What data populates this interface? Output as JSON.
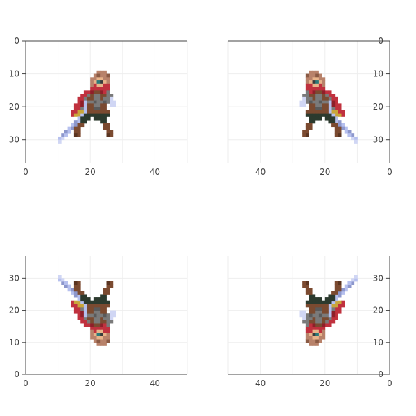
{
  "chart_data": {
    "type": "heatmap",
    "description_panels": [
      "top-left",
      "top-right",
      "bottom-left",
      "bottom-right"
    ],
    "panels": [
      {
        "position": "top-left",
        "xreversed": false,
        "yreversed": true,
        "xlim": [
          0,
          50
        ],
        "ylim": [
          0,
          37
        ],
        "xticks": [
          0,
          20,
          40
        ],
        "yticks": [
          0,
          10,
          20,
          30
        ]
      },
      {
        "position": "top-right",
        "xreversed": true,
        "yreversed": true,
        "xlim": [
          0,
          50
        ],
        "ylim": [
          0,
          37
        ],
        "xticks": [
          40,
          20,
          0
        ],
        "yticks": [
          0,
          10,
          20,
          30
        ]
      },
      {
        "position": "bottom-left",
        "xreversed": false,
        "yreversed": false,
        "xlim": [
          0,
          50
        ],
        "ylim": [
          0,
          37
        ],
        "xticks": [
          0,
          20,
          40
        ],
        "yticks": [
          0,
          10,
          20,
          30
        ]
      },
      {
        "position": "bottom-right",
        "xreversed": true,
        "yreversed": false,
        "xlim": [
          0,
          50
        ],
        "ylim": [
          0,
          37
        ],
        "xticks": [
          40,
          20,
          0
        ],
        "yticks": [
          0,
          10,
          20,
          30
        ]
      }
    ],
    "grid": true,
    "image": {
      "x0": 10,
      "y0": 9,
      "palette": {
        "H": "#b8826a",
        "h": "#8a5a44",
        "S": "#e8b48a",
        "E": "#2b7a7a",
        "e": "#3b3b3b",
        "R": "#c0313e",
        "r": "#8e1f2a",
        "G": "#7a7a7a",
        "g": "#5a5a5a",
        "B": "#7b4a30",
        "b": "#5a3420",
        "K": "#2c3a2e",
        "Y": "#c9a63a",
        "L": "#b6c0ee",
        "l": "#8d97cc",
        "W": "#d0d6f4"
      },
      "rows": [
        "............HHH.....",
        "...........HhHHh....",
        "..........HHSSHH....",
        "..........HSEeSH....",
        "..........HRSSRR....",
        "..........RRRRRR....",
        "........RRrBBrRG....",
        ".......RRGBGGBBGG...",
        "......RRGBBGGBGGW...",
        "......RrLGGgGGgGWW..",
        ".....RRrLBBGGBB.WW..",
        ".....RRGLBBggBB.....",
        "....RRYYLBBBBBBB....",
        "....RYYLKKKKKKKK....",
        "......LKKK.KKKK.....",
        ".....lLKK....KK.....",
        "....LlBB......BB....",
        "...LlBB.......BB....",
        "..lL.BB........BB...",
        ".lL..bB........bB...",
        "LW..................",
        "W..................."
      ]
    }
  }
}
